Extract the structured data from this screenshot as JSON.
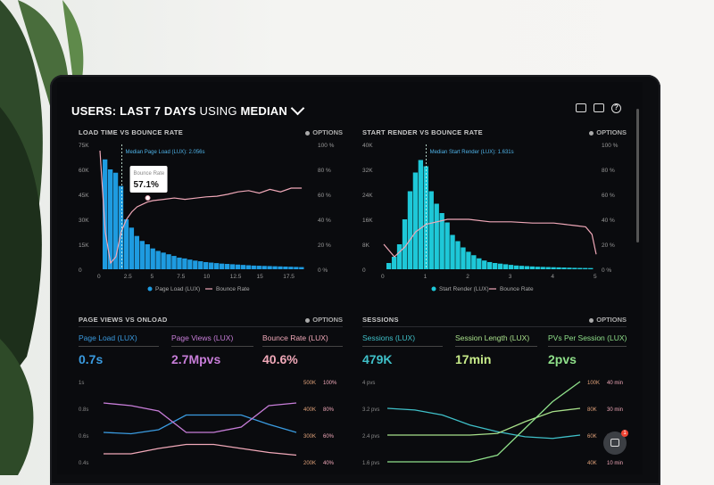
{
  "header": {
    "title_prefix": "USERS:",
    "title_main": "LAST 7 DAYS",
    "title_mid": "USING",
    "title_end": "MEDIAN"
  },
  "options_label": "OPTIONS",
  "colors": {
    "blue": "#1e9be0",
    "cyan": "#1ec8d8",
    "pink": "#f0a8b8",
    "purple": "#c77dd8",
    "green": "#8fe08a",
    "teal": "#3fc0c8"
  },
  "panel1": {
    "title": "LOAD TIME VS BOUNCE RATE",
    "median_label": "Median Page Load (LUX): 2.056s",
    "tooltip_label": "Bounce Rate",
    "tooltip_value": "57.1%",
    "legend_a": "Page Load (LUX)",
    "legend_b": "Bounce Rate"
  },
  "panel2": {
    "title": "START RENDER VS BOUNCE RATE",
    "median_label": "Median Start Render (LUX): 1.631s",
    "legend_a": "Start Render (LUX)",
    "legend_b": "Bounce Rate"
  },
  "panel3": {
    "title": "PAGE VIEWS VS ONLOAD",
    "metrics": [
      {
        "label": "Page Load (LUX)",
        "value": "0.7s"
      },
      {
        "label": "Page Views (LUX)",
        "value": "2.7Mpvs"
      },
      {
        "label": "Bounce Rate (LUX)",
        "value": "40.6%"
      }
    ]
  },
  "panel4": {
    "title": "SESSIONS",
    "metrics": [
      {
        "label": "Sessions (LUX)",
        "value": "479K"
      },
      {
        "label": "Session Length (LUX)",
        "value": "17min"
      },
      {
        "label": "PVs Per Session (LUX)",
        "value": "2pvs"
      }
    ]
  },
  "chat_badge": "1",
  "chart_data": [
    {
      "type": "bar",
      "title": "LOAD TIME VS BOUNCE RATE",
      "y_ticks": [
        "75K",
        "60K",
        "45K",
        "30K",
        "15K",
        "0"
      ],
      "y2_ticks": [
        "100 %",
        "80 %",
        "60 %",
        "40 %",
        "20 %",
        "0 %"
      ],
      "x_ticks": [
        "0",
        "2.5",
        "5",
        "7.5",
        "10",
        "12.5",
        "15",
        "17.5"
      ],
      "ylim": [
        0,
        75000
      ],
      "xlim": [
        0,
        20
      ],
      "bar_width": 0.5,
      "series": [
        {
          "name": "Page Load (LUX)",
          "type": "bar",
          "x": [
            0.5,
            1,
            1.5,
            2,
            2.5,
            3,
            3.5,
            4,
            4.5,
            5,
            5.5,
            6,
            6.5,
            7,
            7.5,
            8,
            8.5,
            9,
            9.5,
            10,
            10.5,
            11,
            11.5,
            12,
            12.5,
            13,
            13.5,
            14,
            14.5,
            15,
            15.5,
            16,
            16.5,
            17,
            17.5,
            18,
            18.5,
            19
          ],
          "values": [
            66000,
            60000,
            58000,
            50000,
            30000,
            25000,
            20000,
            17000,
            15000,
            12500,
            11000,
            10000,
            9000,
            8000,
            7000,
            6500,
            5800,
            5200,
            4800,
            4300,
            4000,
            3700,
            3400,
            3200,
            3000,
            2800,
            2600,
            2400,
            2200,
            2100,
            2000,
            1900,
            1800,
            1700,
            1600,
            1500,
            1400,
            1300
          ]
        },
        {
          "name": "Bounce Rate",
          "type": "line",
          "axis": "right",
          "x": [
            0,
            0.5,
            1,
            1.5,
            2,
            2.5,
            3,
            3.5,
            4,
            4.5,
            5,
            6,
            7,
            8,
            9,
            10,
            11,
            12,
            13,
            14,
            15,
            16,
            17,
            18,
            19
          ],
          "values": [
            95,
            30,
            5,
            10,
            30,
            40,
            46,
            50,
            52,
            54,
            55,
            56,
            57.1,
            56,
            57,
            58,
            58.5,
            60,
            62,
            63,
            61,
            64,
            62,
            65,
            65
          ]
        }
      ]
    },
    {
      "type": "bar",
      "title": "START RENDER VS BOUNCE RATE",
      "y_ticks": [
        "40K",
        "32K",
        "24K",
        "16K",
        "8K",
        "0"
      ],
      "y2_ticks": [
        "100 %",
        "80 %",
        "60 %",
        "40 %",
        "20 %",
        "0 %"
      ],
      "x_ticks": [
        "0",
        "1",
        "2",
        "3",
        "4",
        "5"
      ],
      "ylim": [
        0,
        40000
      ],
      "xlim": [
        0,
        5
      ],
      "bar_width": 0.125,
      "series": [
        {
          "name": "Start Render (LUX)",
          "type": "bar",
          "x": [
            0.125,
            0.25,
            0.375,
            0.5,
            0.625,
            0.75,
            0.875,
            1,
            1.125,
            1.25,
            1.375,
            1.5,
            1.625,
            1.75,
            1.875,
            2,
            2.125,
            2.25,
            2.375,
            2.5,
            2.625,
            2.75,
            2.875,
            3,
            3.125,
            3.25,
            3.375,
            3.5,
            3.625,
            3.75,
            3.875,
            4,
            4.125,
            4.25,
            4.375,
            4.5,
            4.625,
            4.75,
            4.875
          ],
          "values": [
            2000,
            4000,
            8000,
            16000,
            25000,
            31000,
            35000,
            33000,
            25000,
            21000,
            18000,
            15000,
            11000,
            9000,
            7000,
            5600,
            4500,
            3500,
            2800,
            2300,
            2000,
            1800,
            1600,
            1400,
            1200,
            1100,
            1000,
            900,
            800,
            750,
            700,
            650,
            600,
            550,
            500,
            450,
            420,
            400,
            380
          ]
        },
        {
          "name": "Bounce Rate",
          "type": "line",
          "axis": "right",
          "x": [
            0,
            0.25,
            0.5,
            0.75,
            1,
            1.25,
            1.5,
            1.75,
            2,
            2.5,
            3,
            3.5,
            4,
            4.5,
            4.75,
            4.9,
            5
          ],
          "values": [
            20,
            10,
            18,
            30,
            36,
            38,
            40,
            40,
            40,
            38,
            38,
            37,
            37,
            35,
            34,
            28,
            12
          ]
        }
      ]
    },
    {
      "type": "line",
      "title": "PAGE VIEWS VS ONLOAD",
      "y_ticks_left": [
        "1s",
        "0.8s",
        "0.6s",
        "0.4s"
      ],
      "y_ticks_right_a": [
        "500K",
        "400K",
        "300K",
        "200K"
      ],
      "y_ticks_right_b": [
        "100%",
        "80%",
        "60%",
        "40%"
      ],
      "series": [
        {
          "name": "Page Load (LUX)",
          "values": [
            0.62,
            0.61,
            0.64,
            0.75,
            0.75,
            0.75,
            0.68,
            0.62
          ]
        },
        {
          "name": "Page Views (LUX)",
          "values": [
            0.84,
            0.82,
            0.78,
            0.62,
            0.62,
            0.66,
            0.82,
            0.84
          ]
        },
        {
          "name": "Bounce Rate (LUX)",
          "values": [
            0.46,
            0.46,
            0.5,
            0.53,
            0.53,
            0.5,
            0.47,
            0.45
          ]
        }
      ]
    },
    {
      "type": "line",
      "title": "SESSIONS",
      "y_ticks_left": [
        "4 pvs",
        "3.2 pvs",
        "2.4 pvs",
        "1.6 pvs"
      ],
      "y_ticks_right_a": [
        "100K",
        "80K",
        "60K",
        "40K"
      ],
      "y_ticks_right_b": [
        "40 min",
        "30 min",
        "20 min",
        "10 min"
      ],
      "series": [
        {
          "name": "Sessions (LUX)",
          "values": [
            3.2,
            3.15,
            3.0,
            2.7,
            2.5,
            2.35,
            2.3,
            2.4
          ]
        },
        {
          "name": "Session Length (LUX)",
          "values": [
            2.4,
            2.4,
            2.4,
            2.4,
            2.45,
            2.8,
            3.1,
            3.2
          ]
        },
        {
          "name": "PVs Per Session (LUX)",
          "values": [
            1.6,
            1.6,
            1.6,
            1.6,
            1.8,
            2.6,
            3.4,
            4.0
          ]
        }
      ]
    }
  ]
}
